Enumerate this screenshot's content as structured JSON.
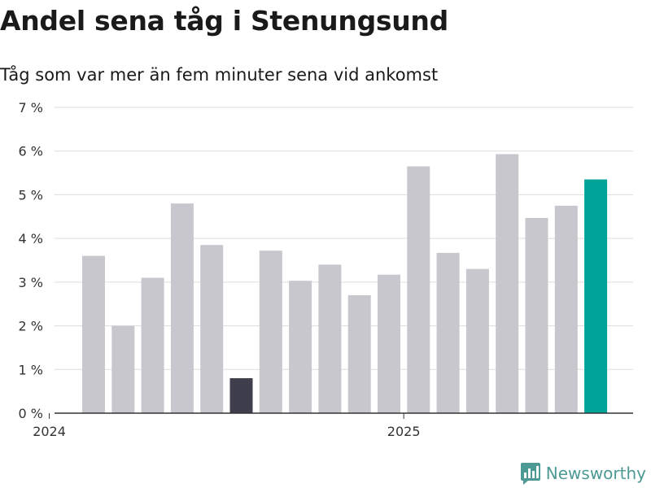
{
  "header": {
    "title": "Andel sena tåg i Stenungsund",
    "subtitle": "Tåg som var mer än fem minuter sena vid ankomst"
  },
  "brand": {
    "name": "Newsworthy",
    "logo_icon": "newsworthy-logo-icon"
  },
  "colors": {
    "default_bar": "#c8c7ce",
    "low_bar": "#3f3e4c",
    "latest_bar": "#00a398",
    "grid": "#dddddd",
    "axis": "#333333",
    "brand": "#4d9a95"
  },
  "chart_data": {
    "type": "bar",
    "title": "Andel sena tåg i Stenungsund",
    "subtitle": "Tåg som var mer än fem minuter sena vid ankomst",
    "xlabel": "",
    "ylabel": "",
    "ylim": [
      0,
      7
    ],
    "y_ticks": [
      0,
      1,
      2,
      3,
      4,
      5,
      6,
      7
    ],
    "y_tick_labels": [
      "0 %",
      "1 %",
      "2 %",
      "3 %",
      "4 %",
      "5 %",
      "6 %",
      "7 %"
    ],
    "x_tick_labels": [
      {
        "label": "2024",
        "date": "2024-01-01"
      },
      {
        "label": "2025",
        "date": "2025-01-01"
      }
    ],
    "grid": true,
    "legend": "none",
    "x": [
      "2024-02",
      "2024-03",
      "2024-04",
      "2024-05",
      "2024-06",
      "2024-07",
      "2024-08",
      "2024-09",
      "2024-10",
      "2024-11",
      "2024-12",
      "2025-01",
      "2025-02",
      "2025-03",
      "2025-04",
      "2025-05",
      "2025-06",
      "2025-07"
    ],
    "values": [
      3.6,
      2.0,
      3.1,
      4.8,
      3.85,
      0.8,
      3.72,
      3.03,
      3.4,
      2.7,
      3.17,
      5.65,
      3.67,
      3.3,
      5.93,
      4.47,
      4.75,
      5.35
    ],
    "highlights": {
      "2024-07": "low_bar",
      "2025-07": "latest_bar"
    }
  }
}
